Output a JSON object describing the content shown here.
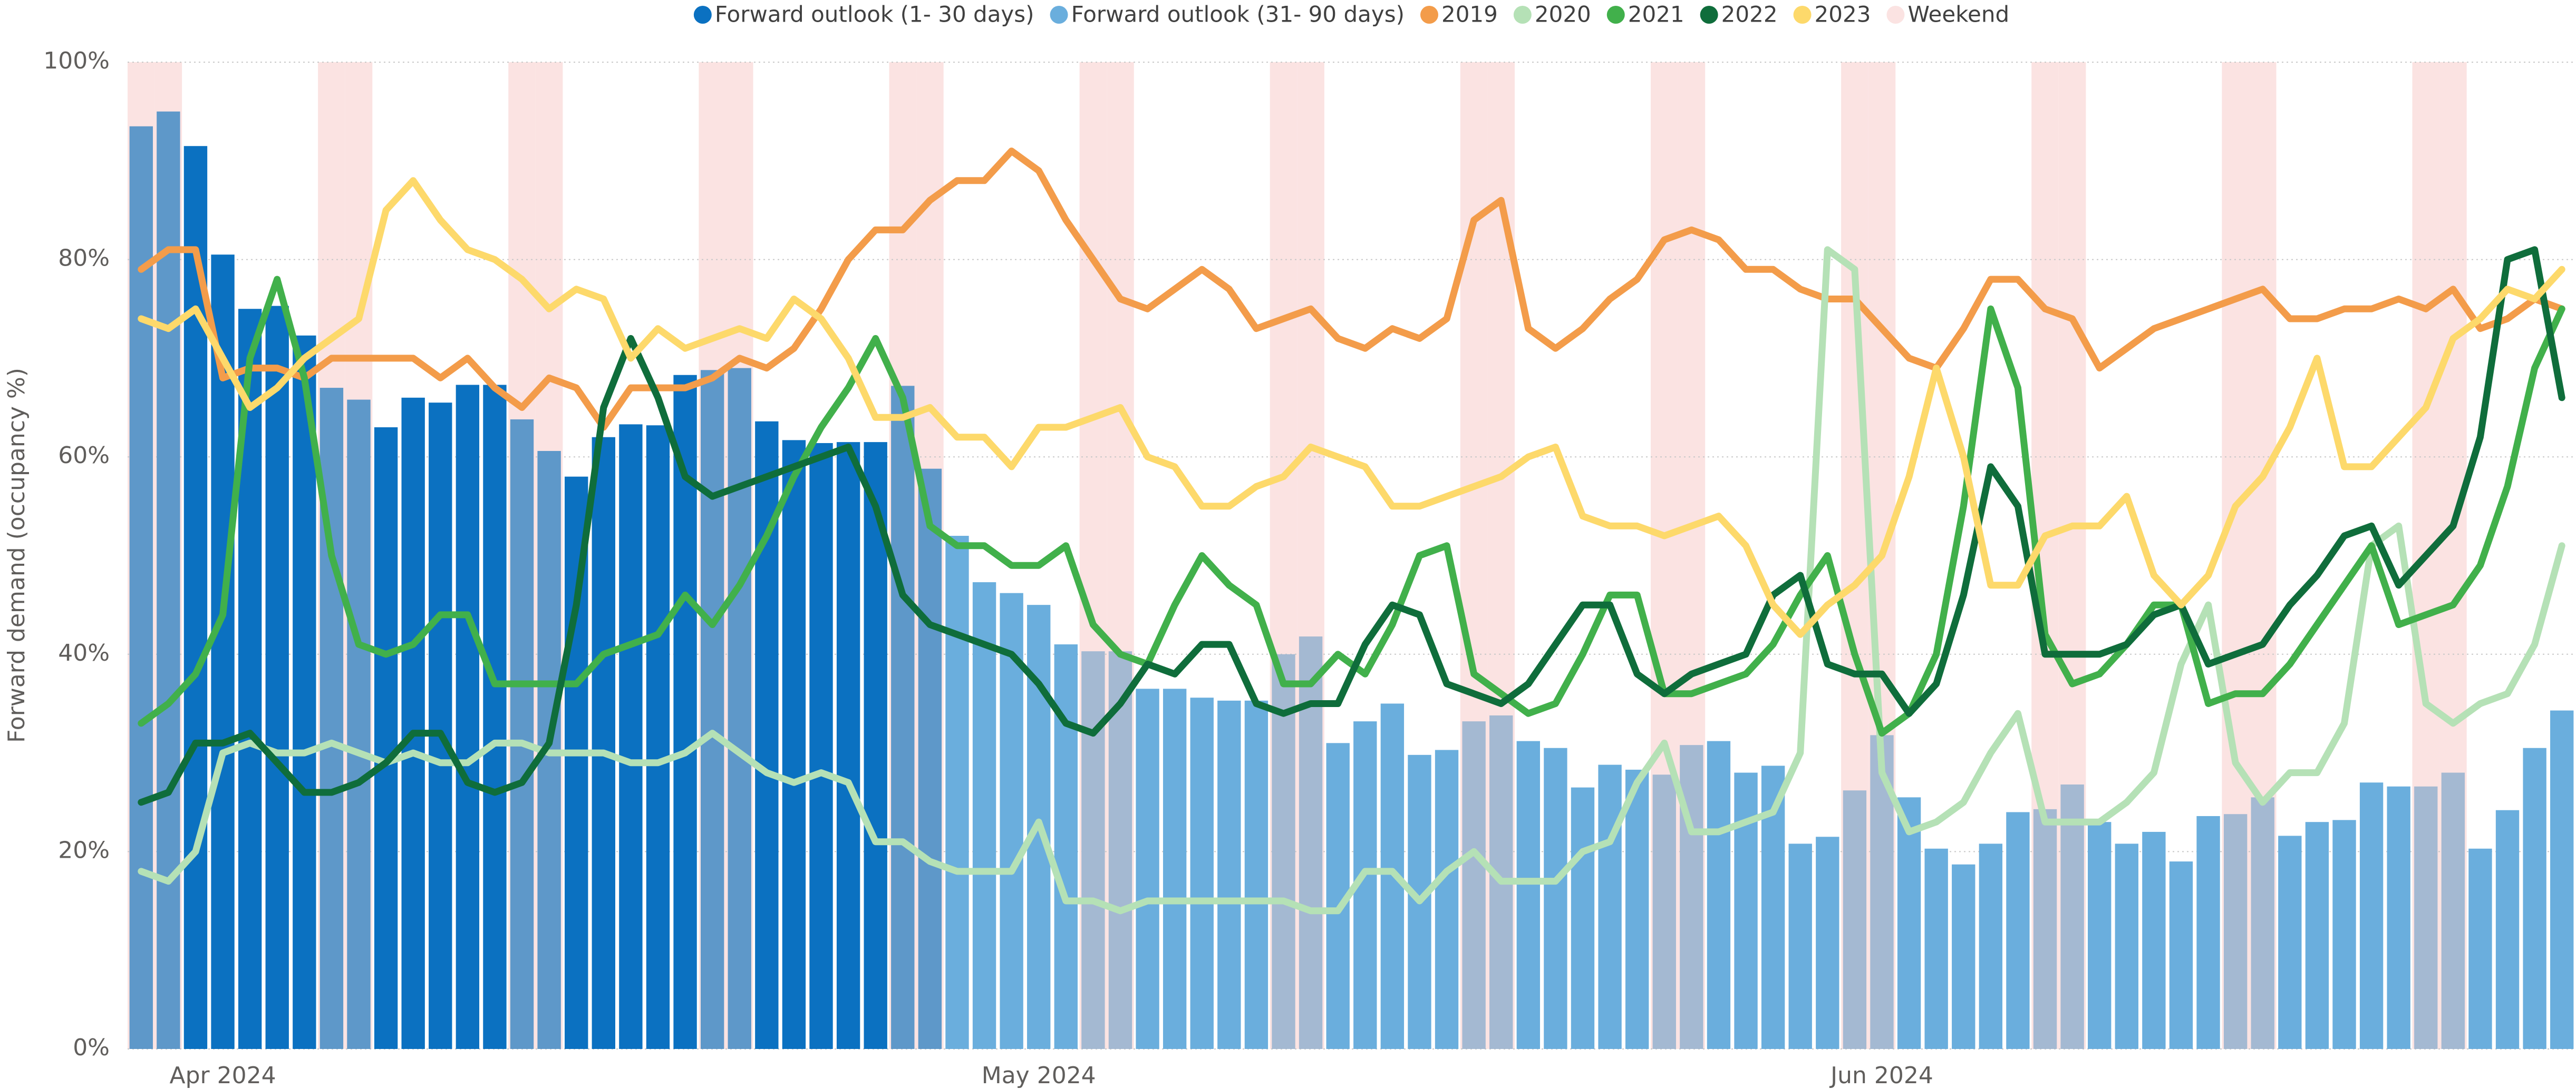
{
  "chart_data": {
    "type": "combo",
    "y_label": "Forward demand (occupancy %)",
    "categories": [
      null,
      null,
      null,
      "Apr 2024",
      null,
      null,
      null,
      null,
      null,
      null,
      null,
      null,
      null,
      null,
      null,
      null,
      null,
      null,
      null,
      null,
      null,
      null,
      null,
      null,
      null,
      null,
      null,
      null,
      null,
      null,
      null,
      null,
      null,
      "May 2024",
      null,
      null,
      null,
      null,
      null,
      null,
      null,
      null,
      null,
      null,
      null,
      null,
      null,
      null,
      null,
      null,
      null,
      null,
      null,
      null,
      null,
      null,
      null,
      null,
      null,
      null,
      null,
      null,
      null,
      null,
      "Jun 2024",
      null,
      null,
      null,
      null,
      null,
      null,
      null,
      null,
      null,
      null,
      null,
      null,
      null,
      null,
      null,
      null,
      null,
      null,
      null,
      null,
      null,
      null,
      null,
      null,
      null
    ],
    "ylim": [
      0,
      100
    ],
    "yticks": [
      {
        "value": 0,
        "label": "0%"
      },
      {
        "value": 20,
        "label": "20%"
      },
      {
        "value": 40,
        "label": "40%"
      },
      {
        "value": 60,
        "label": "60%"
      },
      {
        "value": 80,
        "label": "80%"
      },
      {
        "value": 100,
        "label": "100%"
      }
    ],
    "grid": true,
    "legend": "top",
    "series": [
      {
        "name": "Forward outlook (1- 30 days)",
        "type": "bar",
        "color": "#0b71c1",
        "weekend_color": "#5e98c9",
        "values": [
          93.5,
          95,
          91.5,
          80.5,
          75,
          75.3,
          72.3,
          67,
          65.8,
          63,
          66,
          65.5,
          67.3,
          67.3,
          63.8,
          60.6,
          58,
          62,
          63.3,
          63.2,
          68.3,
          68.8,
          69,
          63.6,
          61.7,
          61.4,
          61.5,
          61.5,
          67.2,
          58.8,
          null,
          null,
          null,
          null,
          null,
          null,
          null,
          null,
          null,
          null,
          null,
          null,
          null,
          null,
          null,
          null,
          null,
          null,
          null,
          null,
          null,
          null,
          null,
          null,
          null,
          null,
          null,
          null,
          null,
          null,
          null,
          null,
          null,
          null,
          null,
          null,
          null,
          null,
          null,
          null,
          null,
          null,
          null,
          null,
          null,
          null,
          null,
          null,
          null,
          null,
          null,
          null,
          null,
          null,
          null,
          null,
          null,
          null,
          null,
          null
        ]
      },
      {
        "name": "Forward outlook (31- 90 days)",
        "type": "bar",
        "color": "#6aaedd",
        "weekend_color": "#a4b9d2",
        "values": [
          null,
          null,
          null,
          null,
          null,
          null,
          null,
          null,
          null,
          null,
          null,
          null,
          null,
          null,
          null,
          null,
          null,
          null,
          null,
          null,
          null,
          null,
          null,
          null,
          null,
          null,
          null,
          null,
          null,
          null,
          52,
          47.3,
          46.2,
          45,
          41,
          40.3,
          40.3,
          36.5,
          36.5,
          35.6,
          35.3,
          35.3,
          40,
          41.8,
          31,
          33.2,
          35,
          29.8,
          30.3,
          33.2,
          33.8,
          31.2,
          30.5,
          26.5,
          28.8,
          28.3,
          27.8,
          30.8,
          31.2,
          28,
          28.7,
          20.8,
          21.5,
          26.2,
          31.8,
          25.5,
          20.3,
          18.7,
          20.8,
          24,
          24.3,
          26.8,
          23,
          20.8,
          22,
          19,
          23.6,
          23.8,
          25.5,
          21.6,
          23,
          23.2,
          27,
          26.6,
          26.6,
          28,
          20.3,
          24.2,
          30.5,
          34.3
        ]
      },
      {
        "name": "2019",
        "type": "line",
        "color": "#f39c4a",
        "values": [
          79,
          81,
          81,
          68,
          69,
          69,
          68,
          70,
          70,
          70,
          70,
          68,
          70,
          67,
          65,
          68,
          67,
          63,
          67,
          67,
          67,
          68,
          70,
          69,
          71,
          75,
          80,
          83,
          83,
          86,
          88,
          88,
          91,
          89,
          84,
          80,
          76,
          75,
          77,
          79,
          77,
          73,
          74,
          75,
          72,
          71,
          73,
          72,
          74,
          84,
          86,
          73,
          71,
          73,
          76,
          78,
          82,
          83,
          82,
          79,
          79,
          77,
          76,
          76,
          73,
          70,
          69,
          73,
          78,
          78,
          75,
          74,
          69,
          71,
          73,
          74,
          75,
          76,
          77,
          74,
          74,
          75,
          75,
          76,
          75,
          77,
          73,
          74,
          76,
          75
        ]
      },
      {
        "name": "2020",
        "type": "line",
        "color": "#b5e1b6",
        "values": [
          18,
          17,
          20,
          30,
          31,
          30,
          30,
          31,
          30,
          29,
          30,
          29,
          29,
          31,
          31,
          30,
          30,
          30,
          29,
          29,
          30,
          32,
          30,
          28,
          27,
          28,
          27,
          21,
          21,
          19,
          18,
          18,
          18,
          23,
          15,
          15,
          14,
          15,
          15,
          15,
          15,
          15,
          15,
          14,
          14,
          18,
          18,
          15,
          18,
          20,
          17,
          17,
          17,
          20,
          21,
          27,
          31,
          22,
          22,
          23,
          24,
          30,
          81,
          79,
          28,
          22,
          23,
          25,
          30,
          34,
          23,
          23,
          23,
          25,
          28,
          39,
          45,
          29,
          25,
          28,
          28,
          33,
          51,
          53,
          35,
          33,
          35,
          36,
          41,
          51
        ]
      },
      {
        "name": "2021",
        "type": "line",
        "color": "#41b04b",
        "values": [
          33,
          35,
          38,
          44,
          70,
          78,
          68,
          50,
          41,
          40,
          41,
          44,
          44,
          37,
          37,
          37,
          37,
          40,
          41,
          42,
          46,
          43,
          47,
          52,
          58,
          63,
          67,
          72,
          66,
          53,
          51,
          51,
          49,
          49,
          51,
          43,
          40,
          39,
          45,
          50,
          47,
          45,
          37,
          37,
          40,
          38,
          43,
          50,
          51,
          38,
          36,
          34,
          35,
          40,
          46,
          46,
          36,
          36,
          37,
          38,
          41,
          46,
          50,
          40,
          32,
          34,
          40,
          55,
          75,
          67,
          42,
          37,
          38,
          41,
          45,
          45,
          35,
          36,
          36,
          39,
          43,
          47,
          51,
          43,
          44,
          45,
          49,
          57,
          69,
          75
        ]
      },
      {
        "name": "2022",
        "type": "line",
        "color": "#0f6d3b",
        "values": [
          25,
          26,
          31,
          31,
          32,
          29,
          26,
          26,
          27,
          29,
          32,
          32,
          27,
          26,
          27,
          31,
          45,
          65,
          72,
          66,
          58,
          56,
          57,
          58,
          59,
          60,
          61,
          55,
          46,
          43,
          42,
          41,
          40,
          37,
          33,
          32,
          35,
          39,
          38,
          41,
          41,
          35,
          34,
          35,
          35,
          41,
          45,
          44,
          37,
          36,
          35,
          37,
          41,
          45,
          45,
          38,
          36,
          38,
          39,
          40,
          46,
          48,
          39,
          38,
          38,
          34,
          37,
          46,
          59,
          55,
          40,
          40,
          40,
          41,
          44,
          45,
          39,
          40,
          41,
          45,
          48,
          52,
          53,
          47,
          50,
          53,
          62,
          80,
          81,
          66
        ]
      },
      {
        "name": "2023",
        "type": "line",
        "color": "#fdd96b",
        "values": [
          74,
          73,
          75,
          70,
          65,
          67,
          70,
          72,
          74,
          85,
          88,
          84,
          81,
          80,
          78,
          75,
          77,
          76,
          70,
          73,
          71,
          72,
          73,
          72,
          76,
          74,
          70,
          64,
          64,
          65,
          62,
          62,
          59,
          63,
          63,
          64,
          65,
          60,
          59,
          55,
          55,
          57,
          58,
          61,
          60,
          59,
          55,
          55,
          56,
          57,
          58,
          60,
          61,
          54,
          53,
          53,
          52,
          53,
          54,
          51,
          45,
          42,
          45,
          47,
          50,
          58,
          69,
          60,
          47,
          47,
          52,
          53,
          53,
          56,
          48,
          45,
          48,
          55,
          58,
          63,
          70,
          59,
          59,
          62,
          65,
          72,
          74,
          77,
          76,
          79
        ]
      },
      {
        "name": "Weekend",
        "type": "band",
        "color": "#fbe3e2",
        "values": [
          100,
          100,
          null,
          null,
          null,
          null,
          null,
          100,
          100,
          null,
          null,
          null,
          null,
          null,
          100,
          100,
          null,
          null,
          null,
          null,
          null,
          100,
          100,
          null,
          null,
          null,
          null,
          null,
          100,
          100,
          null,
          null,
          null,
          null,
          null,
          100,
          100,
          null,
          null,
          null,
          null,
          null,
          100,
          100,
          null,
          null,
          null,
          null,
          null,
          100,
          100,
          null,
          null,
          null,
          null,
          null,
          100,
          100,
          null,
          null,
          null,
          null,
          null,
          100,
          100,
          null,
          null,
          null,
          null,
          null,
          100,
          100,
          null,
          null,
          null,
          null,
          null,
          100,
          100,
          null,
          null,
          null,
          null,
          null,
          100,
          100,
          null,
          null,
          null,
          null
        ]
      }
    ]
  }
}
